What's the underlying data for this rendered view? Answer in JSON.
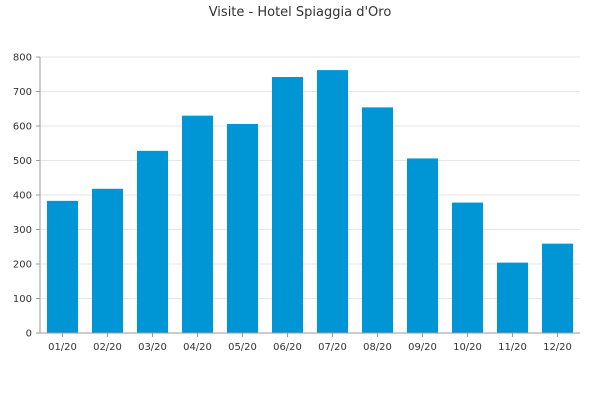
{
  "chart_data": {
    "type": "bar",
    "title": "Visite - Hotel Spiaggia d'Oro",
    "xlabel": "",
    "ylabel": "",
    "categories": [
      "01/20",
      "02/20",
      "03/20",
      "04/20",
      "05/20",
      "06/20",
      "07/20",
      "08/20",
      "09/20",
      "10/20",
      "11/20",
      "12/20"
    ],
    "values": [
      383,
      418,
      528,
      630,
      606,
      742,
      762,
      654,
      506,
      378,
      204,
      259
    ],
    "ylim": [
      0,
      800
    ],
    "yticks": [
      0,
      100,
      200,
      300,
      400,
      500,
      600,
      700,
      800
    ],
    "grid": true,
    "legend": "none",
    "bar_color": "#0096d6"
  }
}
